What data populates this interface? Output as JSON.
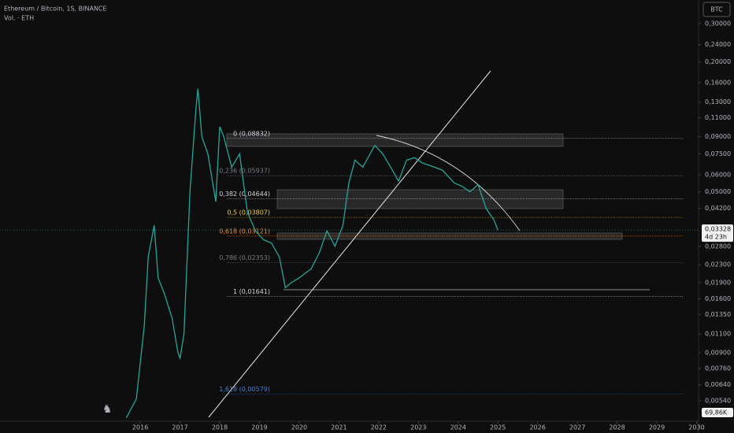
{
  "chart_data": {
    "type": "line",
    "title": "Ethereum / Bitcoin, 1S, BINANCE",
    "subtitle": "Vol. · ETH",
    "button": "BTC",
    "log_scale": true,
    "color": "#26a69a",
    "x": [
      2015.65,
      2015.9,
      2016.1,
      2016.2,
      2016.35,
      2016.45,
      2016.6,
      2016.8,
      2016.95,
      2017.0,
      2017.1,
      2017.25,
      2017.4,
      2017.45,
      2017.55,
      2017.7,
      2017.9,
      2018.0,
      2018.1,
      2018.3,
      2018.5,
      2018.7,
      2018.9,
      2019.1,
      2019.3,
      2019.5,
      2019.65,
      2019.8,
      2020.0,
      2020.3,
      2020.5,
      2020.7,
      2020.9,
      2021.1,
      2021.25,
      2021.4,
      2021.6,
      2021.9,
      2022.1,
      2022.3,
      2022.5,
      2022.7,
      2022.9,
      2023.1,
      2023.3,
      2023.6,
      2023.9,
      2024.1,
      2024.3,
      2024.5,
      2024.7,
      2024.9,
      2025.0
    ],
    "values": [
      0.0045,
      0.0055,
      0.012,
      0.025,
      0.035,
      0.02,
      0.017,
      0.013,
      0.009,
      0.0085,
      0.011,
      0.05,
      0.12,
      0.15,
      0.09,
      0.075,
      0.045,
      0.1,
      0.09,
      0.065,
      0.075,
      0.04,
      0.033,
      0.03,
      0.029,
      0.025,
      0.018,
      0.019,
      0.02,
      0.022,
      0.026,
      0.033,
      0.028,
      0.035,
      0.055,
      0.07,
      0.065,
      0.082,
      0.075,
      0.065,
      0.056,
      0.07,
      0.072,
      0.068,
      0.066,
      0.063,
      0.055,
      0.053,
      0.05,
      0.054,
      0.042,
      0.037,
      0.0333
    ],
    "xlim": [
      2012.47,
      2030.05
    ],
    "xticks": [
      2016,
      2017,
      2018,
      2019,
      2020,
      2021,
      2022,
      2023,
      2024,
      2025,
      2026,
      2027,
      2028,
      2029,
      2030
    ],
    "ylim": [
      0.00434,
      0.386
    ],
    "yticks": [
      {
        "value": 0.3,
        "label": "0,30000"
      },
      {
        "value": 0.24,
        "label": "0,24000"
      },
      {
        "value": 0.2,
        "label": "0,20000"
      },
      {
        "value": 0.16,
        "label": "0,16000"
      },
      {
        "value": 0.13,
        "label": "0,13000"
      },
      {
        "value": 0.11,
        "label": "0,11000"
      },
      {
        "value": 0.09,
        "label": "0,09000"
      },
      {
        "value": 0.075,
        "label": "0,07500"
      },
      {
        "value": 0.06,
        "label": "0,06000"
      },
      {
        "value": 0.05,
        "label": "0,05000"
      },
      {
        "value": 0.042,
        "label": "0,04200"
      },
      {
        "value": 0.028,
        "label": "0,02800"
      },
      {
        "value": 0.023,
        "label": "0,02300"
      },
      {
        "value": 0.019,
        "label": "0,01900"
      },
      {
        "value": 0.016,
        "label": "0,01600"
      },
      {
        "value": 0.0135,
        "label": "0,01350"
      },
      {
        "value": 0.011,
        "label": "0,01100"
      },
      {
        "value": 0.009,
        "label": "0,00900"
      },
      {
        "value": 0.0076,
        "label": "0,00760"
      },
      {
        "value": 0.0064,
        "label": "0,00640"
      },
      {
        "value": 0.0054,
        "label": "0,00540"
      }
    ],
    "fib_levels": [
      {
        "value": 0.08832,
        "label": "0 (0,08832)",
        "color": "#d1d4dc"
      },
      {
        "value": 0.05937,
        "label": "0,236 (0,05937)",
        "color": "#787b86"
      },
      {
        "value": 0.04644,
        "label": "0,382 (0,04644)",
        "color": "#d1d4dc"
      },
      {
        "value": 0.03807,
        "label": "0,5 (0,03807)",
        "color": "#f0c94a"
      },
      {
        "value": 0.03121,
        "label": "0,618 (0,03121)",
        "color": "#f08a30"
      },
      {
        "value": 0.02353,
        "label": "0,786 (0,02353)",
        "color": "#787b86"
      },
      {
        "value": 0.01641,
        "label": "1 (0,01641)",
        "color": "#d1d4dc"
      },
      {
        "value": 0.00579,
        "label": "1,618 (0,00579)",
        "color": "#4a7fd6"
      }
    ],
    "last_price": {
      "value": 0.03328,
      "label": "0,03328"
    },
    "countdown": "4d 23h",
    "volume_label": "69,86K"
  }
}
